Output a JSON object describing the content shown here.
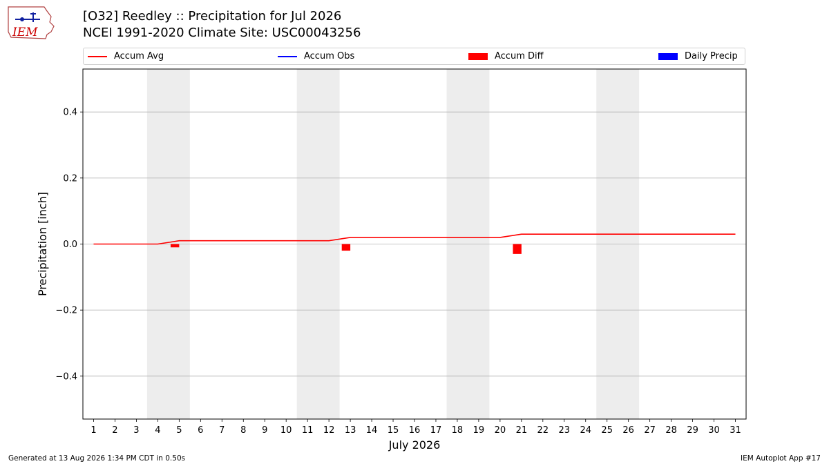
{
  "header": {
    "title_line1": "[O32] Reedley :: Precipitation for Jul 2026",
    "title_line2": "NCEI 1991-2020 Climate Site: USC00043256"
  },
  "logo": {
    "text": "IEM",
    "color": "#cc0000",
    "icon": "iem-iowa-weather-logo"
  },
  "legend": [
    {
      "label": "Accum Avg",
      "kind": "line",
      "color": "#ff0000"
    },
    {
      "label": "Accum Obs",
      "kind": "line",
      "color": "#0000ff"
    },
    {
      "label": "Accum Diff",
      "kind": "bar",
      "color": "#ff0000"
    },
    {
      "label": "Daily Precip",
      "kind": "bar",
      "color": "#0000ff"
    }
  ],
  "chart_data": {
    "type": "line",
    "xlabel": "July 2026",
    "ylabel": "Precipitation [inch]",
    "ylim": [
      -0.53,
      0.53
    ],
    "yticks": [
      -0.4,
      -0.2,
      0.0,
      0.2,
      0.4
    ],
    "ytick_labels": [
      "−0.4",
      "−0.2",
      "0.0",
      "0.2",
      "0.4"
    ],
    "xlim": [
      0.5,
      31.5
    ],
    "x": [
      1,
      2,
      3,
      4,
      5,
      6,
      7,
      8,
      9,
      10,
      11,
      12,
      13,
      14,
      15,
      16,
      17,
      18,
      19,
      20,
      21,
      22,
      23,
      24,
      25,
      26,
      27,
      28,
      29,
      30,
      31
    ],
    "weekend_spans": [
      [
        3.5,
        5.5
      ],
      [
        10.5,
        12.5
      ],
      [
        17.5,
        19.5
      ],
      [
        24.5,
        26.5
      ]
    ],
    "grid": "y",
    "series": [
      {
        "name": "Accum Avg",
        "type": "line",
        "color": "#ff0000",
        "values": [
          0,
          0,
          0,
          0,
          0.01,
          0.01,
          0.01,
          0.01,
          0.01,
          0.01,
          0.01,
          0.01,
          0.02,
          0.02,
          0.02,
          0.02,
          0.02,
          0.02,
          0.02,
          0.02,
          0.03,
          0.03,
          0.03,
          0.03,
          0.03,
          0.03,
          0.03,
          0.03,
          0.03,
          0.03,
          0.03
        ]
      },
      {
        "name": "Accum Diff",
        "type": "bar",
        "color": "#ff0000",
        "x": [
          4.8,
          12.8,
          20.8
        ],
        "values": [
          -0.01,
          -0.02,
          -0.03
        ]
      }
    ]
  },
  "footer": {
    "left": "Generated at 13 Aug 2026 1:34 PM CDT in 0.50s",
    "right": "IEM Autoplot App #17"
  }
}
